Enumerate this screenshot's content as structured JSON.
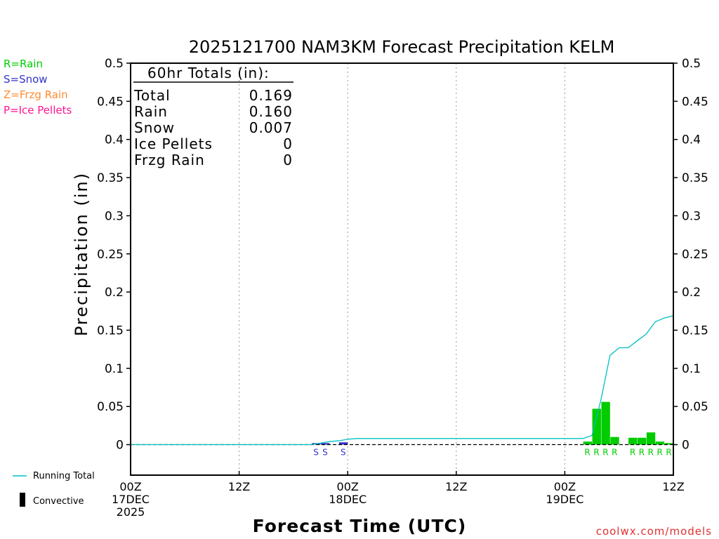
{
  "chart_data": {
    "type": "bar",
    "title": "2025121700 NAM3KM Forecast Precipitation KELM",
    "xlabel": "Forecast Time (UTC)",
    "ylabel": "Precipitation (in)",
    "xlim_hours": [
      0,
      60
    ],
    "ylim": [
      -0.04,
      0.5
    ],
    "yticks": [
      0,
      0.05,
      0.1,
      0.15,
      0.2,
      0.25,
      0.3,
      0.35,
      0.4,
      0.45,
      0.5
    ],
    "ytick_labels": [
      "0",
      "0.05",
      "0.1",
      "0.15",
      "0.2",
      "0.25",
      "0.3",
      "0.35",
      "0.4",
      "0.45",
      "0.5"
    ],
    "xticks": [
      {
        "hour": 0,
        "lines": [
          "00Z",
          "17DEC",
          "2025"
        ]
      },
      {
        "hour": 12,
        "lines": [
          "12Z"
        ]
      },
      {
        "hour": 24,
        "lines": [
          "00Z",
          "18DEC"
        ]
      },
      {
        "hour": 36,
        "lines": [
          "12Z"
        ]
      },
      {
        "hour": 48,
        "lines": [
          "00Z",
          "19DEC"
        ]
      },
      {
        "hour": 60,
        "lines": [
          "12Z"
        ]
      }
    ],
    "totals_box": {
      "header": "60hr Totals (in):",
      "rows": [
        {
          "label": "Total",
          "value": "0.169"
        },
        {
          "label": "Rain",
          "value": "0.160"
        },
        {
          "label": "Snow",
          "value": "0.007"
        },
        {
          "label": "Ice Pellets",
          "value": "0"
        },
        {
          "label": "Frzg Rain",
          "value": "0"
        }
      ]
    },
    "type_legend": [
      {
        "text": "R=Rain",
        "color": "#00cc00"
      },
      {
        "text": "S=Snow",
        "color": "#3333cc"
      },
      {
        "text": "Z=Frzg Rain",
        "color": "#ff8c33"
      },
      {
        "text": "P=Ice Pellets",
        "color": "#ff1493"
      }
    ],
    "series_legend": {
      "running_total": "Running Total",
      "convective": "Convective"
    },
    "credit": "coolwx.com/models",
    "bars": [
      {
        "hour": 21,
        "value": 0.002,
        "type": "S"
      },
      {
        "hour": 22,
        "value": 0.002,
        "type": "S"
      },
      {
        "hour": 24,
        "value": 0.003,
        "type": "S"
      },
      {
        "hour": 51,
        "value": 0.004,
        "type": "R"
      },
      {
        "hour": 52,
        "value": 0.047,
        "type": "R"
      },
      {
        "hour": 53,
        "value": 0.056,
        "type": "R"
      },
      {
        "hour": 54,
        "value": 0.01,
        "type": "R"
      },
      {
        "hour": 56,
        "value": 0.009,
        "type": "R"
      },
      {
        "hour": 57,
        "value": 0.009,
        "type": "R"
      },
      {
        "hour": 58,
        "value": 0.016,
        "type": "R"
      },
      {
        "hour": 59,
        "value": 0.004,
        "type": "R"
      },
      {
        "hour": 60,
        "value": 0.002,
        "type": "R"
      }
    ],
    "running_total": {
      "hours": [
        0,
        20,
        21,
        22,
        23,
        24,
        25,
        50,
        51,
        52,
        53,
        54,
        55,
        56,
        57,
        58,
        59,
        60
      ],
      "values": [
        0,
        0,
        0.002,
        0.004,
        0.005,
        0.007,
        0.008,
        0.008,
        0.012,
        0.059,
        0.117,
        0.127,
        0.127,
        0.136,
        0.145,
        0.161,
        0.166,
        0.169
      ]
    },
    "colors": {
      "rain": "#00cc00",
      "snow": "#3333cc",
      "running_total": "#00c0c0",
      "convective": "#000000",
      "grid": "#999999"
    }
  }
}
